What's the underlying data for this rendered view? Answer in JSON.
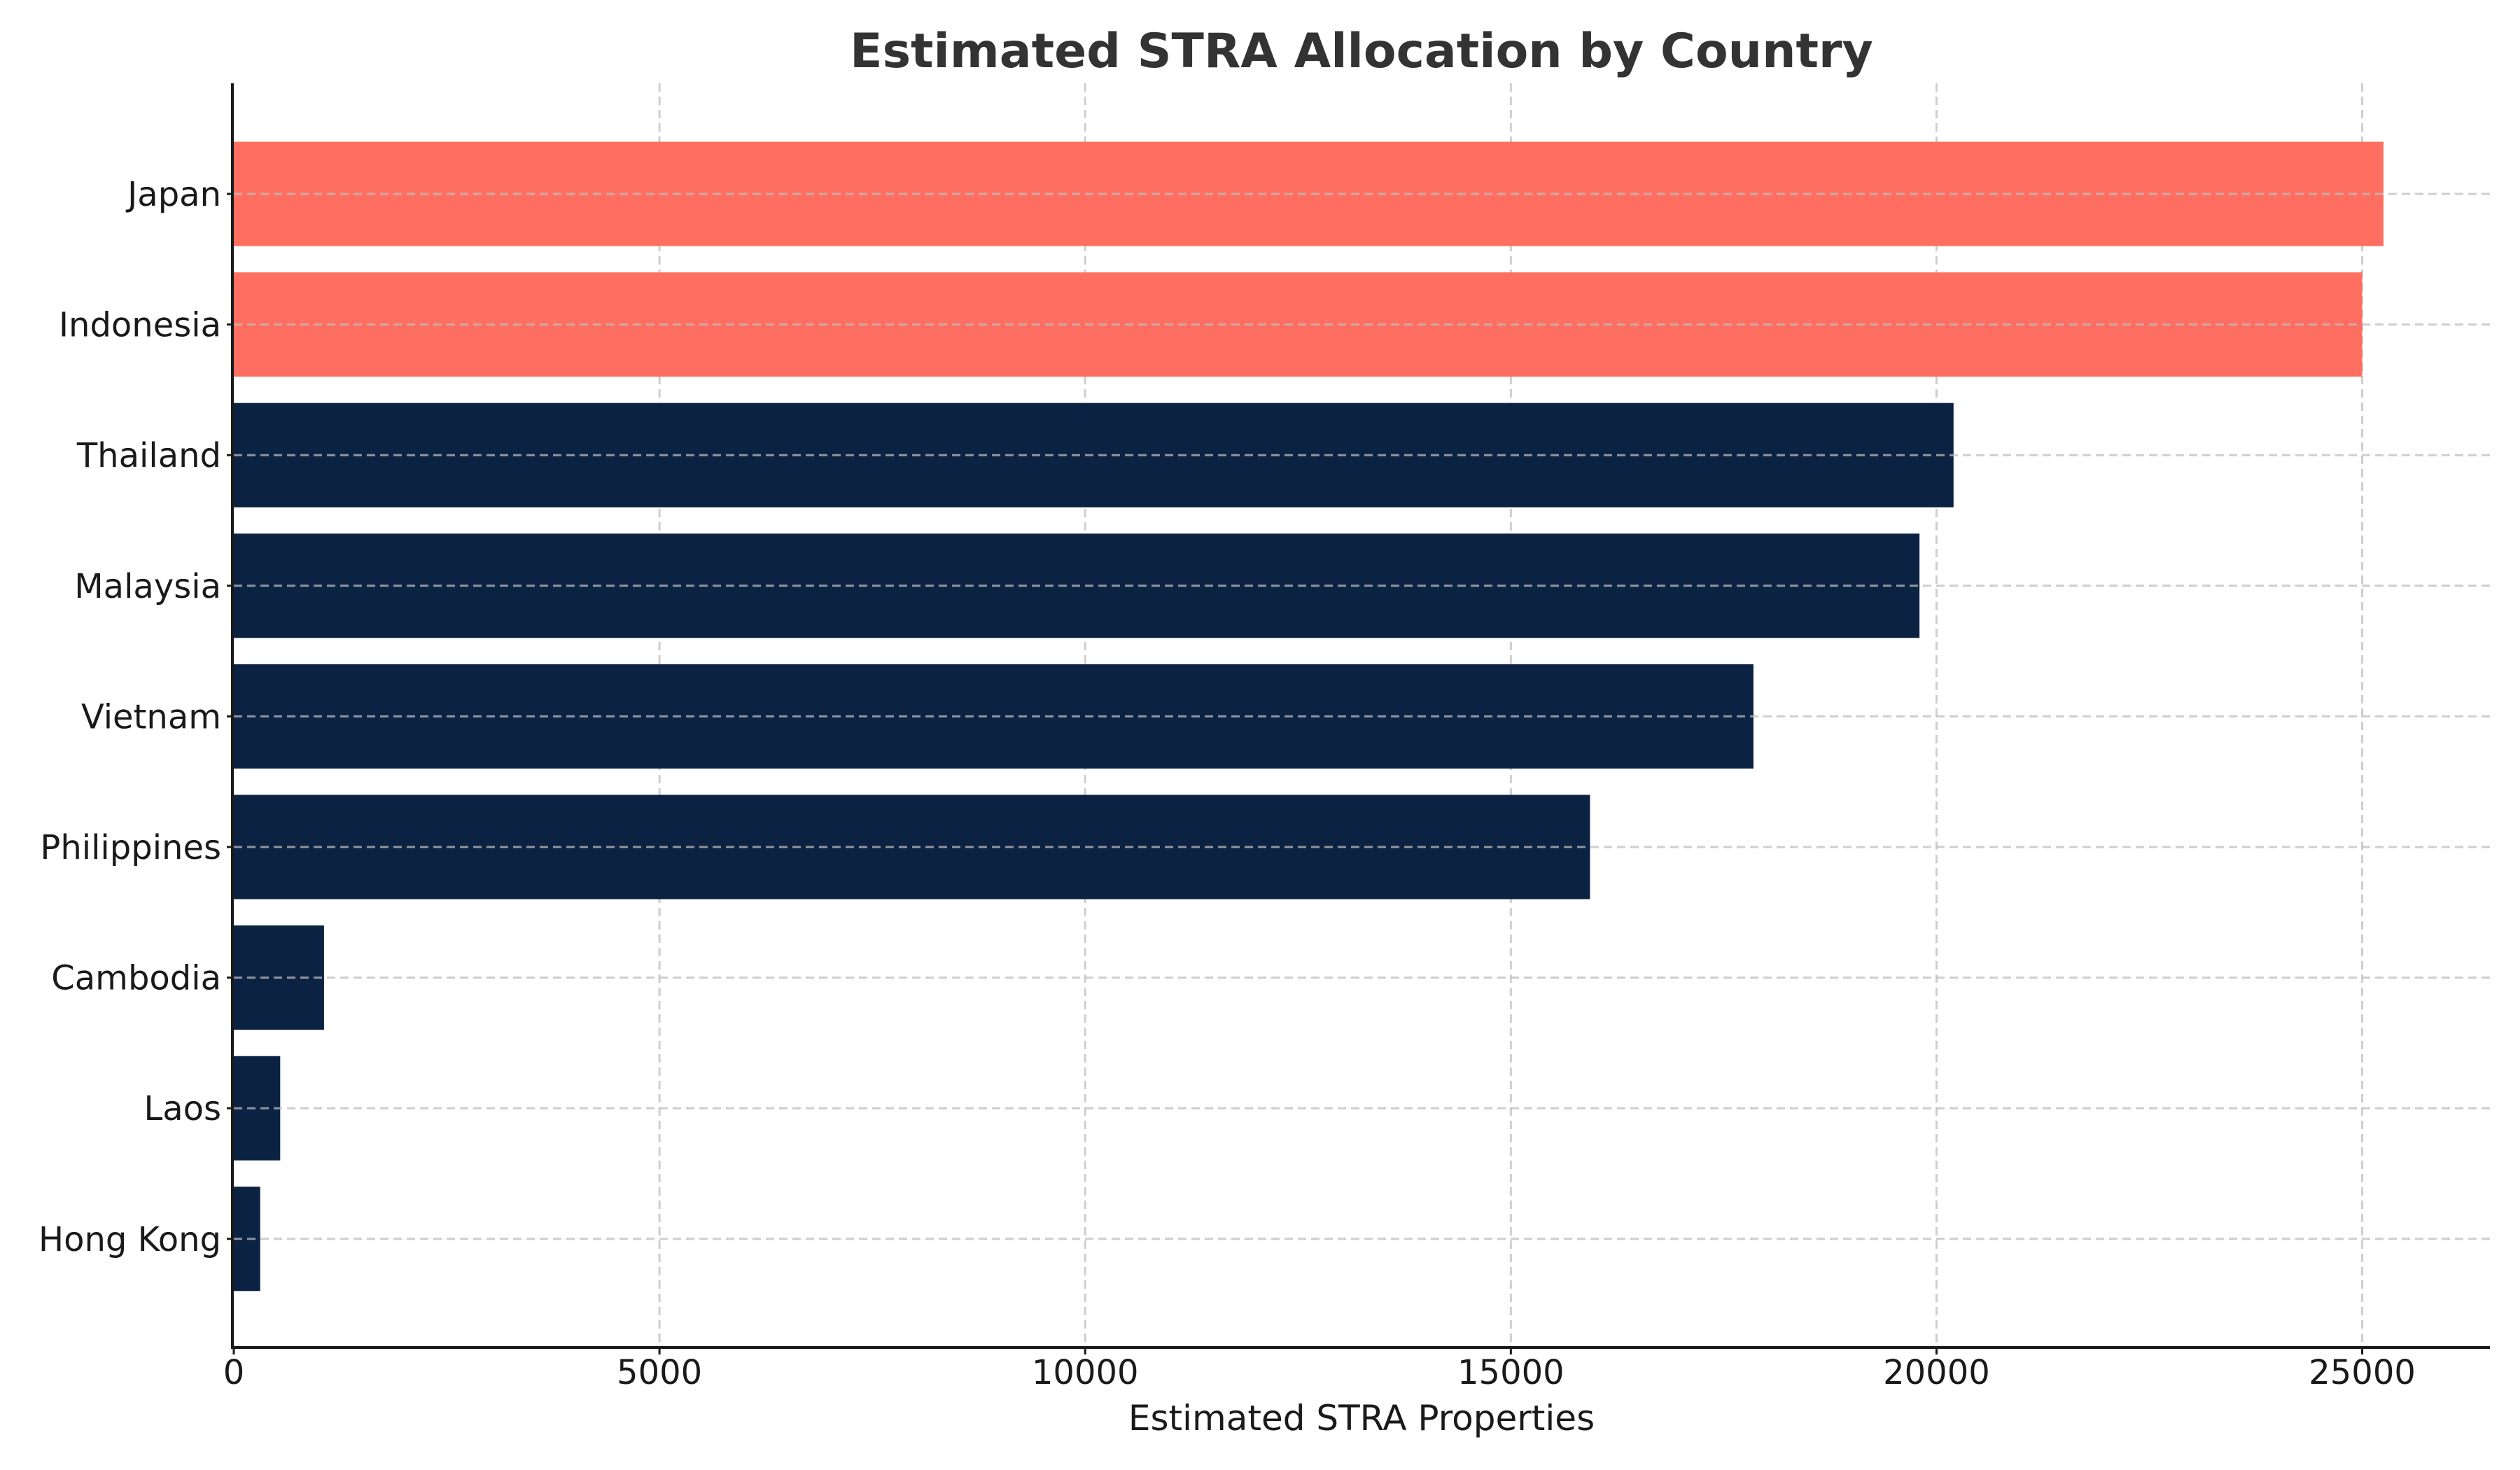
{
  "chart_data": {
    "type": "bar",
    "orientation": "horizontal",
    "title": "Estimated STRA Allocation by Country",
    "xlabel": "Estimated STRA Properties",
    "ylabel": "",
    "categories": [
      "Japan",
      "Indonesia",
      "Thailand",
      "Malaysia",
      "Vietnam",
      "Philippines",
      "Cambodia",
      "Laos",
      "Hong Kong"
    ],
    "values": [
      25250,
      25000,
      20200,
      19800,
      17850,
      15930,
      1060,
      545,
      310
    ],
    "highlight": [
      true,
      true,
      false,
      false,
      false,
      false,
      false,
      false,
      false
    ],
    "colors": {
      "highlight": "#FF6F61",
      "default": "#0B2242",
      "title": "#333333",
      "text": "#1a1a1a",
      "grid": "#cccccc"
    },
    "xlim": [
      0,
      26500
    ],
    "xticks": [
      0,
      5000,
      10000,
      15000,
      20000,
      25000
    ],
    "xtick_labels": [
      "0",
      "5000",
      "10000",
      "15000",
      "20000",
      "25000"
    ],
    "grid": true,
    "grid_style": "dashed"
  }
}
